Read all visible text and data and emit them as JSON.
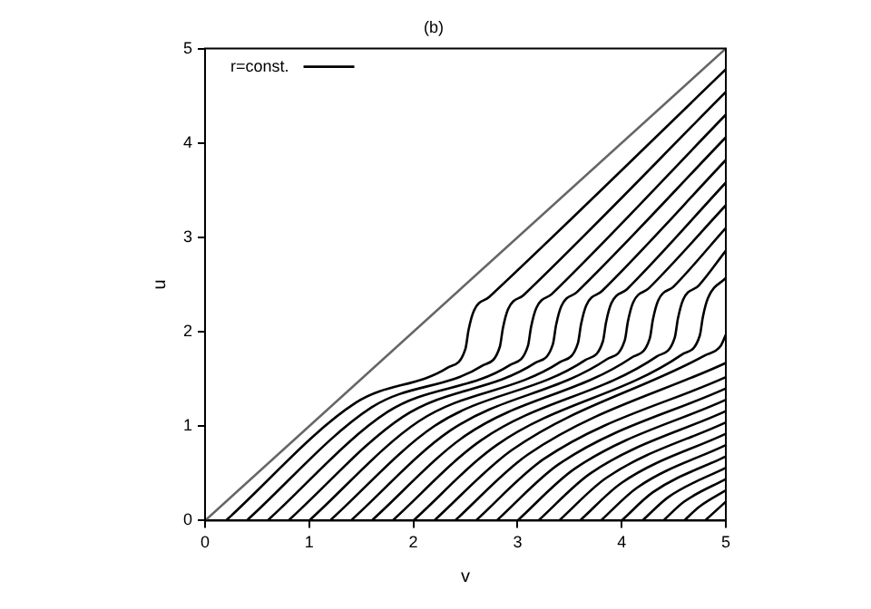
{
  "chart_data": {
    "type": "line",
    "title": "(b)",
    "xlabel": "v",
    "ylabel": "u",
    "xlim": [
      0,
      5
    ],
    "ylim": [
      0,
      5
    ],
    "xticks": [
      0,
      1,
      2,
      3,
      4,
      5
    ],
    "yticks": [
      0,
      1,
      2,
      3,
      4,
      5
    ],
    "grid": false,
    "legend": "top left",
    "marker": "none",
    "line_style": "solid",
    "series": [
      {
        "color": "#666666",
        "x": [
          0,
          5
        ],
        "values": [
          0,
          5
        ]
      },
      {
        "name": "r=const.",
        "color": "#000000",
        "x": [
          0.2,
          1.45,
          2.33,
          2.5,
          2.53,
          2.58,
          2.73,
          5
        ],
        "values": [
          0,
          1.25,
          1.62,
          1.82,
          2.02,
          2.22,
          2.37,
          4.78
        ]
      },
      {
        "color": "#000000",
        "x": [
          0.4,
          1.6,
          2.66,
          2.83,
          2.86,
          2.91,
          3.06,
          5
        ],
        "values": [
          0,
          1.2,
          1.64,
          1.84,
          2.04,
          2.24,
          2.39,
          4.54
        ]
      },
      {
        "color": "#000000",
        "x": [
          0.6,
          1.75,
          2.93,
          3.1,
          3.13,
          3.18,
          3.33,
          5
        ],
        "values": [
          0,
          1.15,
          1.65,
          1.85,
          2.05,
          2.25,
          2.4,
          4.3
        ]
      },
      {
        "color": "#000000",
        "x": [
          0.8,
          1.9,
          3.17,
          3.34,
          3.37,
          3.42,
          3.57,
          5
        ],
        "values": [
          0,
          1.1,
          1.67,
          1.87,
          2.07,
          2.27,
          2.42,
          4.06
        ]
      },
      {
        "color": "#000000",
        "x": [
          1.0,
          2.05,
          3.41,
          3.58,
          3.61,
          3.66,
          3.81,
          5
        ],
        "values": [
          0,
          1.05,
          1.68,
          1.88,
          2.08,
          2.28,
          2.43,
          3.82
        ]
      },
      {
        "color": "#000000",
        "x": [
          1.2,
          2.2,
          3.65,
          3.82,
          3.85,
          3.9,
          4.05,
          5
        ],
        "values": [
          0,
          1.0,
          1.7,
          1.9,
          2.1,
          2.3,
          2.45,
          3.58
        ]
      },
      {
        "color": "#000000",
        "x": [
          1.4,
          2.35,
          3.86,
          4.03,
          4.06,
          4.11,
          4.26,
          5
        ],
        "values": [
          0,
          0.95,
          1.71,
          1.91,
          2.11,
          2.31,
          2.46,
          3.34
        ]
      },
      {
        "color": "#000000",
        "x": [
          1.6,
          2.5,
          4.1,
          4.27,
          4.3,
          4.35,
          4.5,
          5
        ],
        "values": [
          0,
          0.9,
          1.73,
          1.93,
          2.13,
          2.33,
          2.48,
          3.1
        ]
      },
      {
        "color": "#000000",
        "x": [
          1.8,
          2.65,
          4.34,
          4.51,
          4.54,
          4.59,
          4.74,
          5
        ],
        "values": [
          0,
          0.85,
          1.74,
          1.94,
          2.14,
          2.34,
          2.49,
          2.86
        ]
      },
      {
        "color": "#000000",
        "x": [
          2.0,
          2.8,
          4.58,
          4.75,
          4.78,
          4.83,
          5
        ],
        "values": [
          0,
          0.8,
          1.76,
          1.96,
          2.16,
          2.36,
          2.57
        ]
      },
      {
        "color": "#000000",
        "x": [
          2.2,
          2.95,
          4.8,
          4.95,
          5
        ],
        "values": [
          0,
          0.75,
          1.75,
          1.85,
          1.97
        ]
      },
      {
        "color": "#000000",
        "x": [
          2.4,
          3.1,
          5
        ],
        "values": [
          0,
          0.7,
          1.67
        ]
      },
      {
        "color": "#000000",
        "x": [
          2.6,
          3.25,
          5
        ],
        "values": [
          0,
          0.65,
          1.52
        ]
      },
      {
        "color": "#000000",
        "x": [
          2.8,
          3.4,
          5
        ],
        "values": [
          0,
          0.6,
          1.4
        ]
      },
      {
        "color": "#000000",
        "x": [
          3.0,
          3.55,
          5
        ],
        "values": [
          0,
          0.55,
          1.28
        ]
      },
      {
        "color": "#000000",
        "x": [
          3.2,
          3.7,
          5
        ],
        "values": [
          0,
          0.5,
          1.16
        ]
      },
      {
        "color": "#000000",
        "x": [
          3.4,
          3.85,
          5
        ],
        "values": [
          0,
          0.45,
          1.04
        ]
      },
      {
        "color": "#000000",
        "x": [
          3.6,
          4.0,
          5
        ],
        "values": [
          0,
          0.4,
          0.92
        ]
      },
      {
        "color": "#000000",
        "x": [
          3.8,
          4.15,
          5
        ],
        "values": [
          0,
          0.35,
          0.8
        ]
      },
      {
        "color": "#000000",
        "x": [
          4.0,
          4.3,
          5
        ],
        "values": [
          0,
          0.3,
          0.68
        ]
      },
      {
        "color": "#000000",
        "x": [
          4.2,
          4.45,
          5
        ],
        "values": [
          0,
          0.25,
          0.56
        ]
      },
      {
        "color": "#000000",
        "x": [
          4.4,
          4.6,
          5
        ],
        "values": [
          0,
          0.2,
          0.44
        ]
      },
      {
        "color": "#000000",
        "x": [
          4.6,
          4.75,
          5
        ],
        "values": [
          0,
          0.15,
          0.32
        ]
      },
      {
        "color": "#000000",
        "x": [
          4.8,
          5
        ],
        "values": [
          0,
          0.2
        ]
      }
    ]
  }
}
